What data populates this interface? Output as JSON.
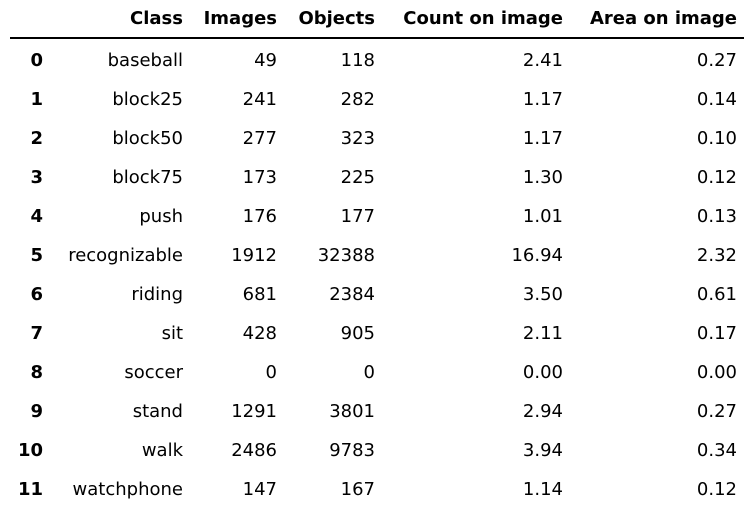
{
  "chart_data": {
    "type": "table",
    "columns": [
      "",
      "Class",
      "Images",
      "Objects",
      "Count on image",
      "Area on image"
    ],
    "rows": [
      [
        "0",
        "baseball",
        "49",
        "118",
        "2.41",
        "0.27"
      ],
      [
        "1",
        "block25",
        "241",
        "282",
        "1.17",
        "0.14"
      ],
      [
        "2",
        "block50",
        "277",
        "323",
        "1.17",
        "0.10"
      ],
      [
        "3",
        "block75",
        "173",
        "225",
        "1.30",
        "0.12"
      ],
      [
        "4",
        "push",
        "176",
        "177",
        "1.01",
        "0.13"
      ],
      [
        "5",
        "recognizable",
        "1912",
        "32388",
        "16.94",
        "2.32"
      ],
      [
        "6",
        "riding",
        "681",
        "2384",
        "3.50",
        "0.61"
      ],
      [
        "7",
        "sit",
        "428",
        "905",
        "2.11",
        "0.17"
      ],
      [
        "8",
        "soccer",
        "0",
        "0",
        "0.00",
        "0.00"
      ],
      [
        "9",
        "stand",
        "1291",
        "3801",
        "2.94",
        "0.27"
      ],
      [
        "10",
        "walk",
        "2486",
        "9783",
        "3.94",
        "0.34"
      ],
      [
        "11",
        "watchphone",
        "147",
        "167",
        "1.14",
        "0.12"
      ]
    ]
  }
}
